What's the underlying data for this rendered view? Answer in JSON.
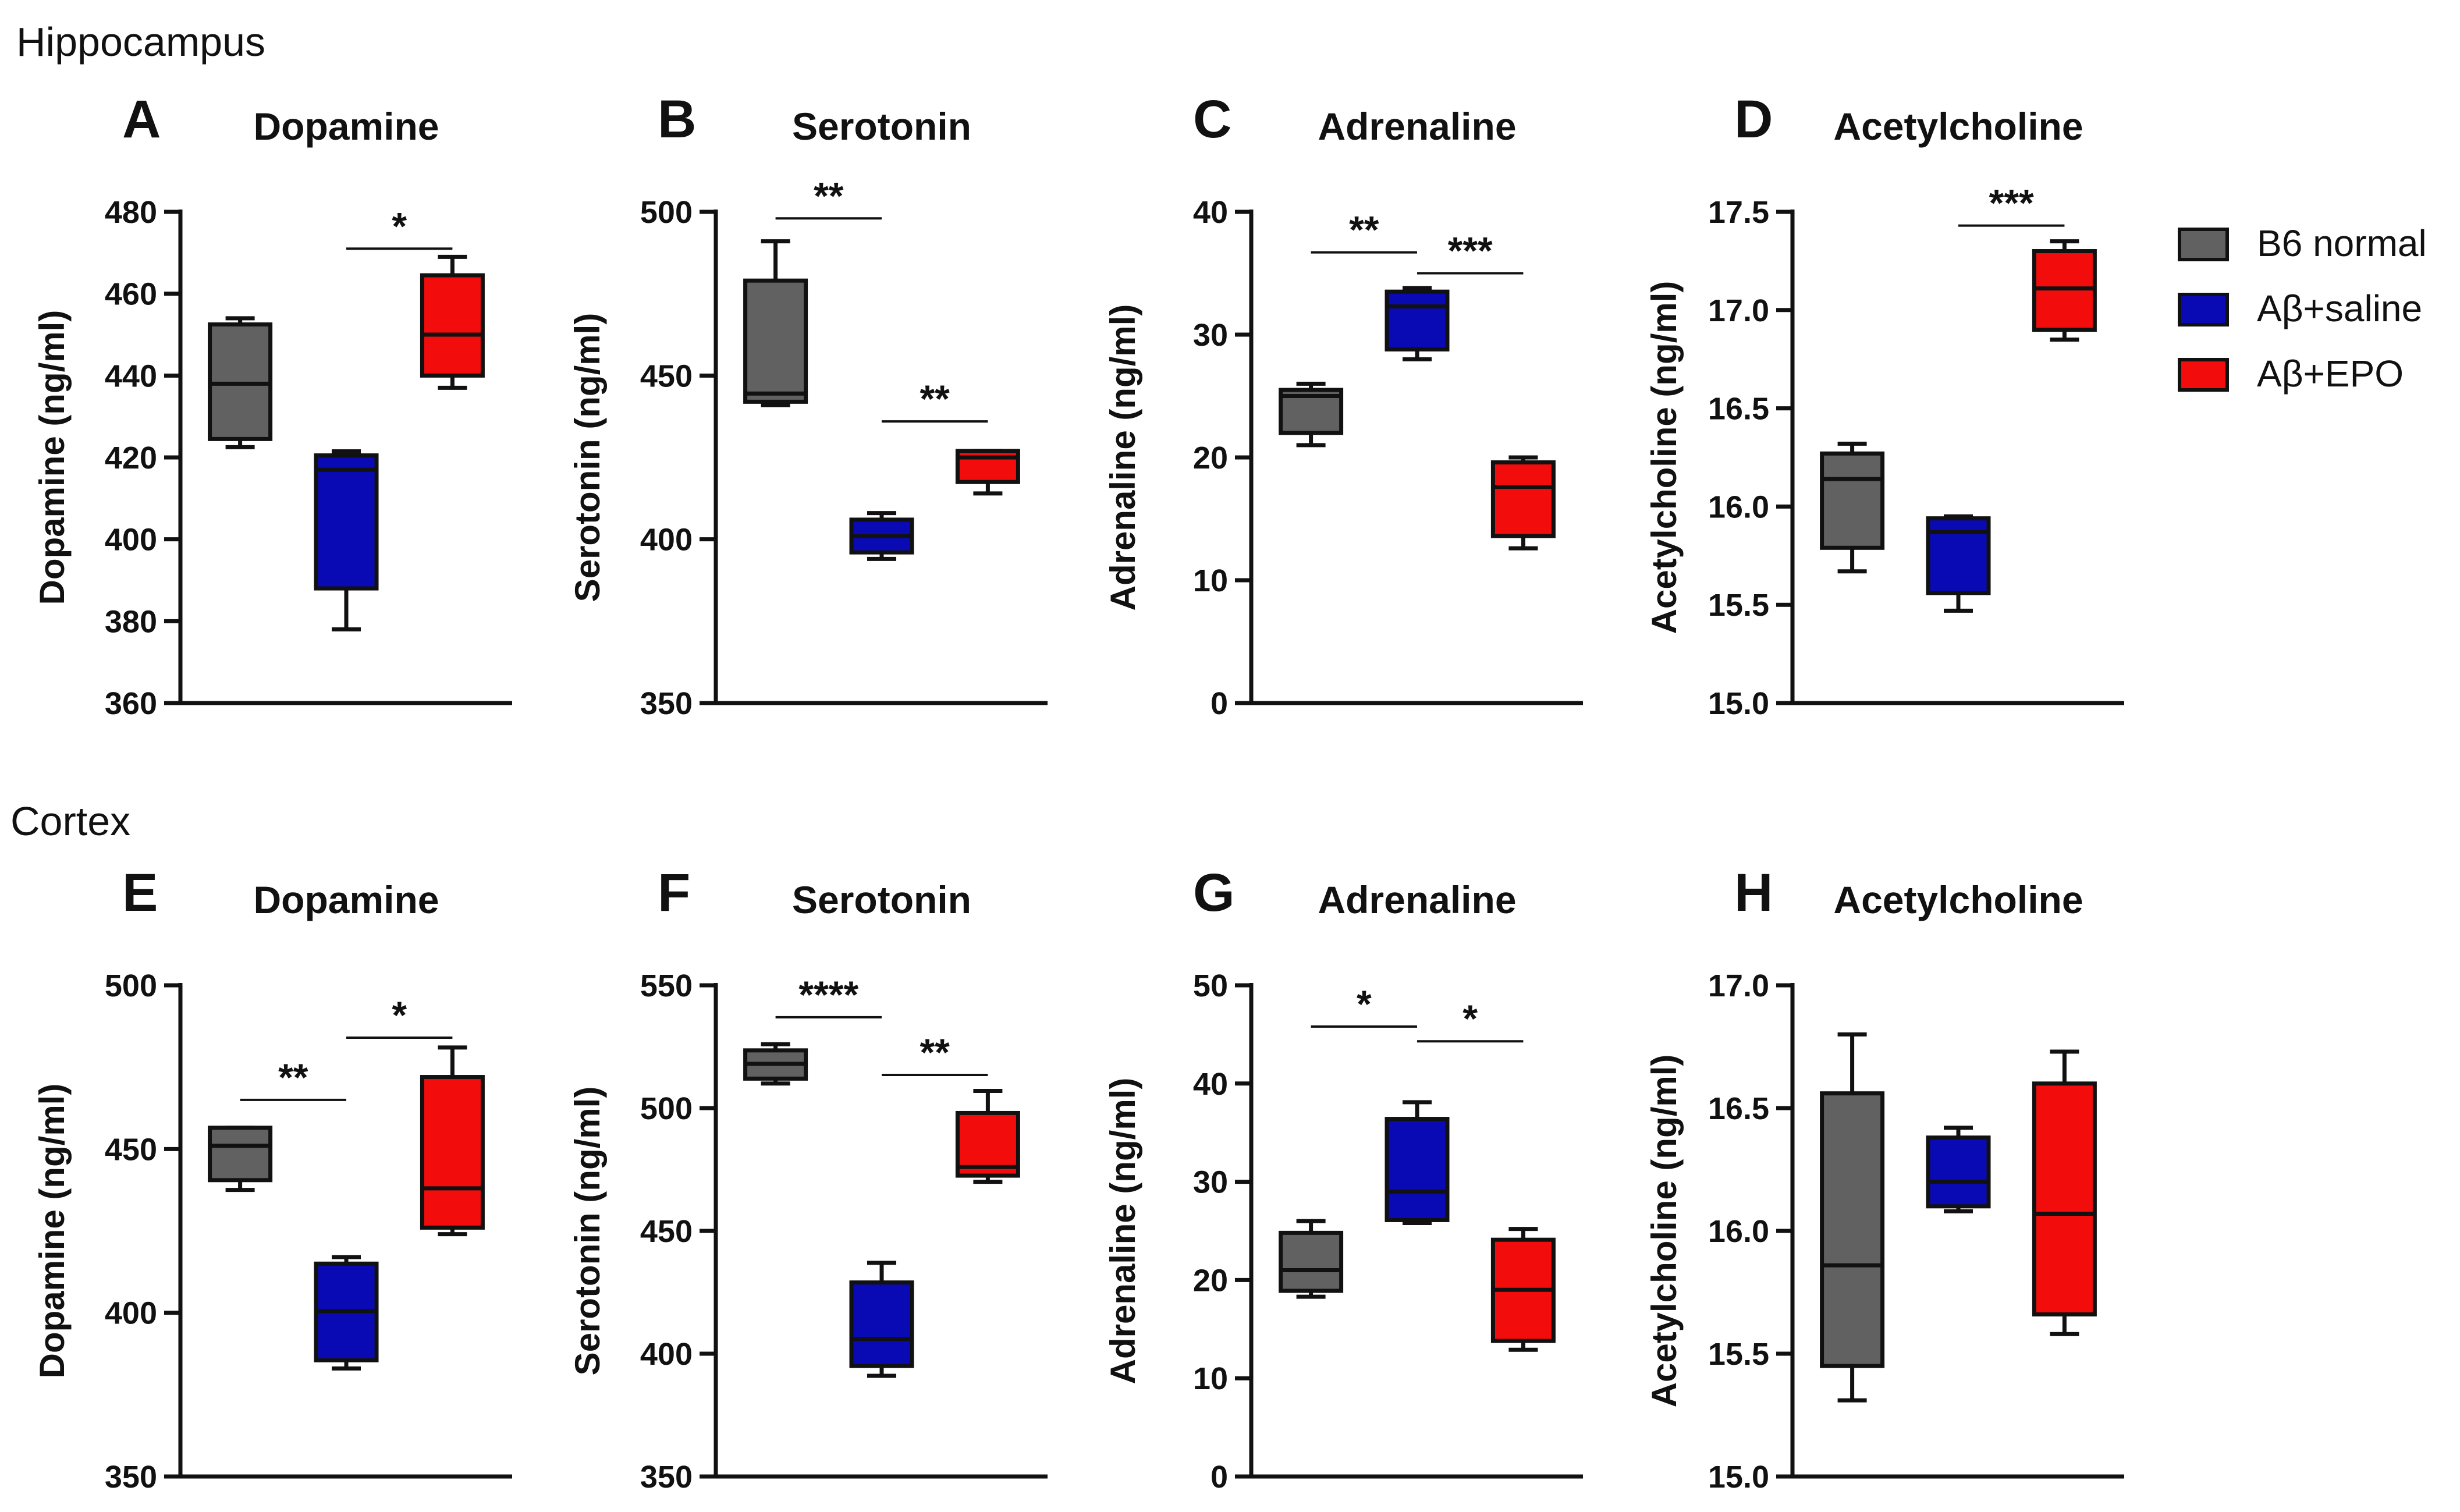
{
  "section_labels": {
    "hippocampus": "Hippocampus",
    "cortex": "Cortex"
  },
  "legend": [
    {
      "name": "B6 normal",
      "color": "#616161"
    },
    {
      "name": "Aβ+saline",
      "color": "#0a0ab5"
    },
    {
      "name": "Aβ+EPO",
      "color": "#f20c0c"
    }
  ],
  "chart_data": [
    {
      "type": "box",
      "letter": "A",
      "title": "Dopamine",
      "ylabel": "Dopamine (ng/ml)",
      "ylim": [
        360,
        480
      ],
      "yticks": [
        "360",
        "380",
        "400",
        "420",
        "440",
        "460",
        "480"
      ],
      "groups": [
        {
          "name": "B6 normal",
          "color": "#616161",
          "min": 422.5,
          "q1": 424.5,
          "median": 438,
          "q3": 452.5,
          "max": 454
        },
        {
          "name": "Aβ+saline",
          "color": "#0a0ab5",
          "min": 378,
          "q1": 388,
          "median": 417,
          "q3": 420.5,
          "max": 421.5
        },
        {
          "name": "Aβ+EPO",
          "color": "#f20c0c",
          "min": 437,
          "q1": 440,
          "median": 450,
          "q3": 464.5,
          "max": 469
        }
      ],
      "significance": [
        {
          "from": 1,
          "to": 2,
          "label": "*",
          "y": 471
        }
      ]
    },
    {
      "type": "box",
      "letter": "B",
      "title": "Serotonin",
      "ylabel": "Serotonin (ng/ml)",
      "ylim": [
        350,
        500
      ],
      "yticks": [
        "350",
        "400",
        "450",
        "500"
      ],
      "groups": [
        {
          "name": "B6 normal",
          "color": "#616161",
          "min": 441,
          "q1": 442,
          "median": 444.5,
          "q3": 479,
          "max": 491
        },
        {
          "name": "Aβ+saline",
          "color": "#0a0ab5",
          "min": 394,
          "q1": 396,
          "median": 401,
          "q3": 406,
          "max": 408
        },
        {
          "name": "Aβ+EPO",
          "color": "#f20c0c",
          "min": 414,
          "q1": 417.5,
          "median": 425,
          "q3": 427,
          "max": 427
        }
      ],
      "significance": [
        {
          "from": 0,
          "to": 1,
          "label": "**",
          "y": 498
        },
        {
          "from": 1,
          "to": 2,
          "label": "**",
          "y": 436
        }
      ]
    },
    {
      "type": "box",
      "letter": "C",
      "title": "Adrenaline",
      "ylabel": "Adrenaline (ng/ml)",
      "ylim": [
        0,
        40
      ],
      "yticks": [
        "0",
        "10",
        "20",
        "30",
        "40"
      ],
      "groups": [
        {
          "name": "B6 normal",
          "color": "#616161",
          "min": 21,
          "q1": 22,
          "median": 25,
          "q3": 25.5,
          "max": 26
        },
        {
          "name": "Aβ+saline",
          "color": "#0a0ab5",
          "min": 28,
          "q1": 28.8,
          "median": 32.3,
          "q3": 33.5,
          "max": 33.8
        },
        {
          "name": "Aβ+EPO",
          "color": "#f20c0c",
          "min": 12.6,
          "q1": 13.6,
          "median": 17.6,
          "q3": 19.6,
          "max": 20
        }
      ],
      "significance": [
        {
          "from": 0,
          "to": 1,
          "label": "**",
          "y": 36.7
        },
        {
          "from": 1,
          "to": 2,
          "label": "***",
          "y": 35
        }
      ]
    },
    {
      "type": "box",
      "letter": "D",
      "title": "Acetylcholine",
      "ylabel": "Acetylcholine (ng/ml)",
      "ylim": [
        15.0,
        17.5
      ],
      "yticks": [
        "15.0",
        "15.5",
        "16.0",
        "16.5",
        "17.0",
        "17.5"
      ],
      "groups": [
        {
          "name": "B6 normal",
          "color": "#616161",
          "min": 15.67,
          "q1": 15.79,
          "median": 16.14,
          "q3": 16.27,
          "max": 16.32
        },
        {
          "name": "Aβ+saline",
          "color": "#0a0ab5",
          "min": 15.47,
          "q1": 15.56,
          "median": 15.87,
          "q3": 15.94,
          "max": 15.95
        },
        {
          "name": "Aβ+EPO",
          "color": "#f20c0c",
          "min": 16.85,
          "q1": 16.9,
          "median": 17.11,
          "q3": 17.3,
          "max": 17.35
        }
      ],
      "significance": [
        {
          "from": 1,
          "to": 2,
          "label": "***",
          "y": 17.43
        }
      ]
    },
    {
      "type": "box",
      "letter": "E",
      "title": "Dopamine",
      "ylabel": "Dopamine (ng/ml)",
      "ylim": [
        350,
        500
      ],
      "yticks": [
        "350",
        "400",
        "450",
        "500"
      ],
      "groups": [
        {
          "name": "B6 normal",
          "color": "#616161",
          "min": 437.5,
          "q1": 440.5,
          "median": 451,
          "q3": 456.5,
          "max": 456.5
        },
        {
          "name": "Aβ+saline",
          "color": "#0a0ab5",
          "min": 383,
          "q1": 385.5,
          "median": 400.5,
          "q3": 415,
          "max": 417
        },
        {
          "name": "Aβ+EPO",
          "color": "#f20c0c",
          "min": 424,
          "q1": 426,
          "median": 438,
          "q3": 472,
          "max": 481
        }
      ],
      "significance": [
        {
          "from": 0,
          "to": 1,
          "label": "**",
          "y": 465
        },
        {
          "from": 1,
          "to": 2,
          "label": "*",
          "y": 484
        }
      ]
    },
    {
      "type": "box",
      "letter": "F",
      "title": "Serotonin",
      "ylabel": "Serotonin (ng/ml)",
      "ylim": [
        350,
        550
      ],
      "yticks": [
        "350",
        "400",
        "450",
        "500",
        "550"
      ],
      "groups": [
        {
          "name": "B6 normal",
          "color": "#616161",
          "min": 510,
          "q1": 512,
          "median": 518,
          "q3": 523.5,
          "max": 526
        },
        {
          "name": "Aβ+saline",
          "color": "#0a0ab5",
          "min": 391,
          "q1": 395,
          "median": 406,
          "q3": 429,
          "max": 437
        },
        {
          "name": "Aβ+EPO",
          "color": "#f20c0c",
          "min": 470,
          "q1": 472.5,
          "median": 476,
          "q3": 498,
          "max": 507
        }
      ],
      "significance": [
        {
          "from": 0,
          "to": 1,
          "label": "****",
          "y": 537
        },
        {
          "from": 1,
          "to": 2,
          "label": "**",
          "y": 513.5
        }
      ]
    },
    {
      "type": "box",
      "letter": "G",
      "title": "Adrenaline",
      "ylabel": "Adrenaline (ng/ml)",
      "ylim": [
        0,
        50
      ],
      "yticks": [
        "0",
        "10",
        "20",
        "30",
        "40",
        "50"
      ],
      "groups": [
        {
          "name": "B6 normal",
          "color": "#616161",
          "min": 18.3,
          "q1": 18.9,
          "median": 21,
          "q3": 24.8,
          "max": 26
        },
        {
          "name": "Aβ+saline",
          "color": "#0a0ab5",
          "min": 25.8,
          "q1": 26.1,
          "median": 29,
          "q3": 36.4,
          "max": 38.1
        },
        {
          "name": "Aβ+EPO",
          "color": "#f20c0c",
          "min": 12.9,
          "q1": 13.8,
          "median": 19,
          "q3": 24.1,
          "max": 25.2
        }
      ],
      "significance": [
        {
          "from": 0,
          "to": 1,
          "label": "*",
          "y": 45.8
        },
        {
          "from": 1,
          "to": 2,
          "label": "*",
          "y": 44.3
        }
      ]
    },
    {
      "type": "box",
      "letter": "H",
      "title": "Acetylcholine",
      "ylabel": "Acetylcholine (ng/ml)",
      "ylim": [
        15.0,
        17.0
      ],
      "yticks": [
        "15.0",
        "15.5",
        "16.0",
        "16.5",
        "17.0"
      ],
      "groups": [
        {
          "name": "B6 normal",
          "color": "#616161",
          "min": 15.31,
          "q1": 15.45,
          "median": 15.86,
          "q3": 16.56,
          "max": 16.8
        },
        {
          "name": "Aβ+saline",
          "color": "#0a0ab5",
          "min": 16.08,
          "q1": 16.1,
          "median": 16.2,
          "q3": 16.38,
          "max": 16.42
        },
        {
          "name": "Aβ+EPO",
          "color": "#f20c0c",
          "min": 15.58,
          "q1": 15.66,
          "median": 16.07,
          "q3": 16.6,
          "max": 16.73
        }
      ],
      "significance": []
    }
  ]
}
